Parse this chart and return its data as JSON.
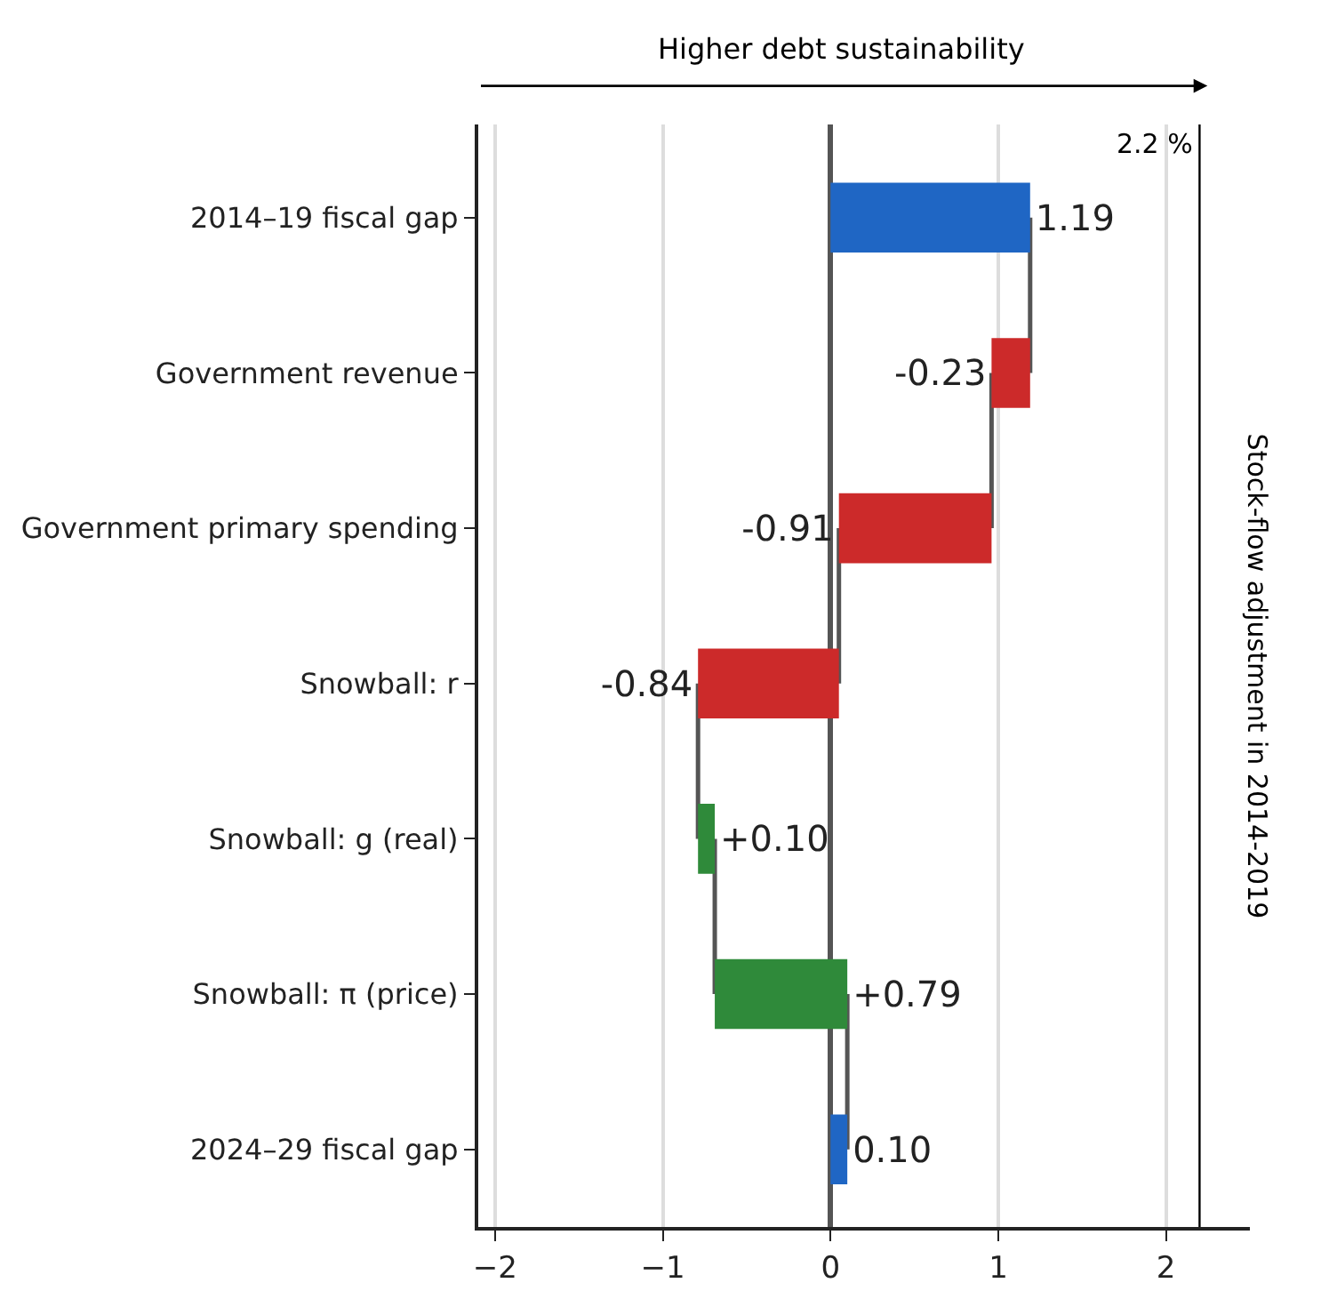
{
  "chart_data": {
    "type": "bar",
    "orientation": "horizontal",
    "categories": [
      "2014–19 fiscal gap",
      "Government revenue",
      "Government primary spending",
      "Snowball: r",
      "Snowball: g (real)",
      "Snowball: π (price)",
      "2024–29 fiscal gap"
    ],
    "values": [
      1.19,
      -0.23,
      -0.91,
      -0.84,
      0.1,
      0.79,
      0.1
    ],
    "base": [
      0,
      1.19,
      0.96,
      0.05,
      -0.79,
      -0.69,
      0
    ],
    "colors": [
      "#1f66c4",
      "#cc2a2a",
      "#cc2a2a",
      "#cc2a2a",
      "#2f8a3a",
      "#2f8a3a",
      "#1f66c4"
    ],
    "value_labels": [
      "1.19",
      "-0.23",
      "-0.91",
      "-0.84",
      "+0.10",
      "+0.79",
      "0.10"
    ],
    "xlim": [
      -2.1,
      2.5
    ],
    "xticks": [
      {
        "value": -2,
        "label": "−2"
      },
      {
        "value": -1,
        "label": "−1"
      },
      0,
      1,
      2
    ],
    "grid": "x",
    "ref_lines": [
      {
        "axis": "x",
        "value": 2.2,
        "label": "2.2 %",
        "color": "#000000"
      }
    ],
    "annotations": [
      "Higher debt sustainability",
      "Stock-flow adjustment in 2014-2019"
    ]
  }
}
